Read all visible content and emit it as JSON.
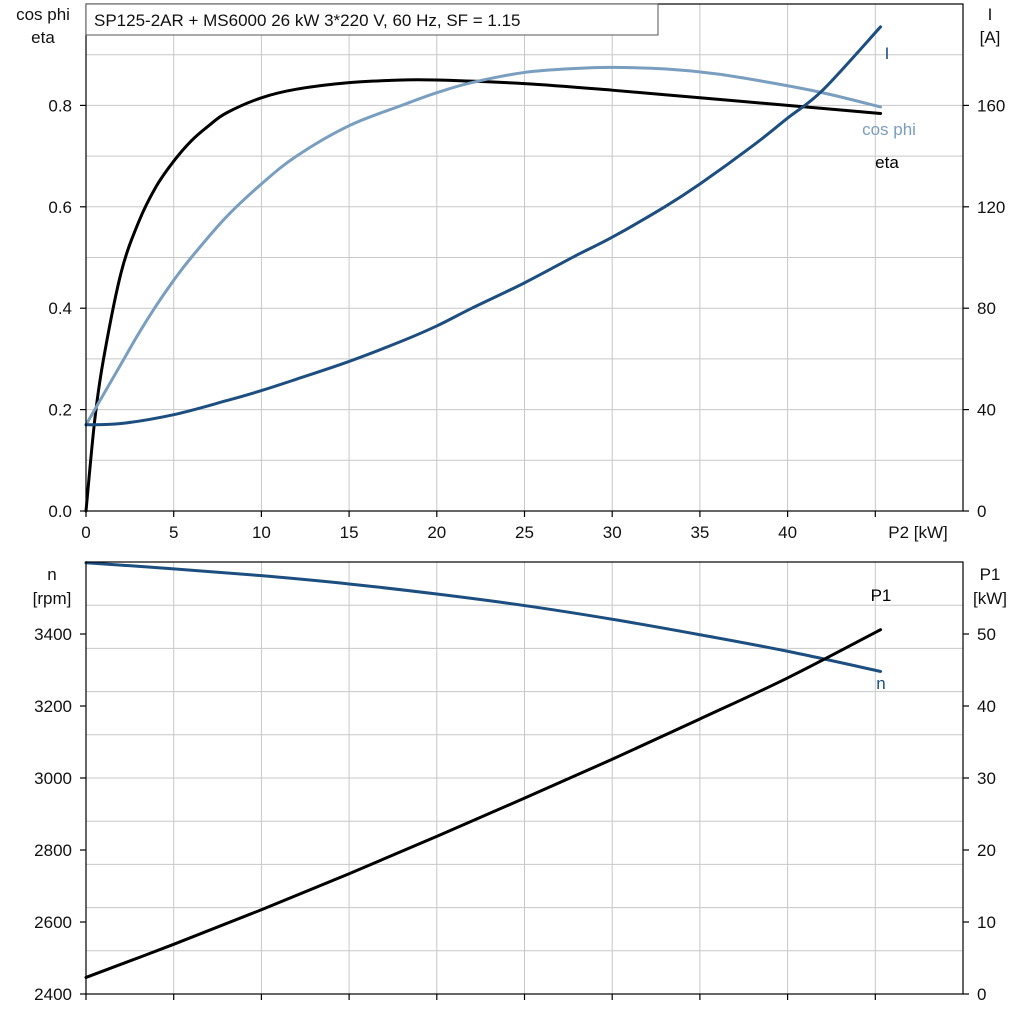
{
  "chart_data": [
    {
      "type": "line",
      "title": "SP125-2AR + MS6000   26 kW   3*220 V, 60 Hz, SF = 1.15",
      "xlabel": "P2 [kW]",
      "ylabel_left_line1": "cos phi",
      "ylabel_left_line2": "eta",
      "ylabel_right_line1": "I",
      "ylabel_right_line2": "[A]",
      "xlim": [
        0,
        50
      ],
      "ylim_left": [
        0,
        1.0
      ],
      "ylim_right": [
        0,
        200
      ],
      "x_ticks": [
        "0",
        "5",
        "10",
        "15",
        "20",
        "25",
        "30",
        "35",
        "40"
      ],
      "y_ticks_left": [
        "0.0",
        "0.2",
        "0.4",
        "0.6",
        "0.8"
      ],
      "y_ticks_right": [
        "0",
        "40",
        "80",
        "120",
        "160"
      ],
      "grid": true,
      "series": [
        {
          "name": "eta",
          "axis": "left",
          "color": "#000000",
          "x": [
            0,
            0.5,
            1,
            2,
            3,
            4,
            5,
            6,
            7,
            8,
            10,
            12,
            15,
            18,
            20,
            25,
            30,
            35,
            40,
            45.3
          ],
          "y": [
            0.0,
            0.18,
            0.3,
            0.47,
            0.57,
            0.64,
            0.69,
            0.73,
            0.76,
            0.785,
            0.815,
            0.832,
            0.845,
            0.85,
            0.85,
            0.843,
            0.83,
            0.815,
            0.8,
            0.784
          ]
        },
        {
          "name": "cos phi",
          "axis": "left",
          "color": "#7A9EBF",
          "x": [
            0,
            1,
            2,
            3,
            4,
            5,
            6,
            8,
            10,
            12,
            15,
            18,
            20,
            22,
            25,
            28,
            30,
            33,
            36,
            39,
            42,
            45.3
          ],
          "y": [
            0.17,
            0.23,
            0.29,
            0.35,
            0.405,
            0.455,
            0.5,
            0.58,
            0.645,
            0.7,
            0.76,
            0.8,
            0.825,
            0.845,
            0.865,
            0.873,
            0.875,
            0.872,
            0.862,
            0.845,
            0.825,
            0.797
          ]
        },
        {
          "name": "I",
          "axis": "right",
          "color": "#1C4E80",
          "x": [
            0,
            2,
            5,
            8,
            10,
            12,
            15,
            18,
            20,
            22,
            25,
            28,
            30,
            33,
            35,
            38,
            40,
            42,
            45.3
          ],
          "y": [
            34,
            34.5,
            38,
            43.5,
            47.5,
            52,
            59,
            67,
            73,
            80,
            90,
            101,
            108,
            120,
            129,
            144,
            155,
            166,
            191
          ]
        }
      ],
      "labels": {
        "eta": "eta",
        "cos_phi": "cos phi",
        "I": "I"
      }
    },
    {
      "type": "line",
      "xlabel": "",
      "ylabel_left_line1": "n",
      "ylabel_left_line2": "[rpm]",
      "ylabel_right_line1": "P1",
      "ylabel_right_line2": "[kW]",
      "xlim": [
        0,
        50
      ],
      "ylim_left": [
        2400,
        3600
      ],
      "ylim_right": [
        0,
        60
      ],
      "y_ticks_left": [
        "2400",
        "2600",
        "2800",
        "3000",
        "3200",
        "3400"
      ],
      "y_ticks_right": [
        "0",
        "10",
        "20",
        "30",
        "40",
        "50"
      ],
      "grid": true,
      "series": [
        {
          "name": "n",
          "axis": "left",
          "color": "#1C4E80",
          "x": [
            0,
            5,
            10,
            15,
            20,
            25,
            30,
            35,
            40,
            45.3
          ],
          "y": [
            3598,
            3581,
            3562,
            3539,
            3511,
            3479,
            3441,
            3398,
            3352,
            3296
          ]
        },
        {
          "name": "P1",
          "axis": "right",
          "color": "#000000",
          "x": [
            0,
            5,
            10,
            15,
            20,
            25,
            30,
            35,
            40,
            45.3
          ],
          "y": [
            2.3,
            6.9,
            11.7,
            16.7,
            21.9,
            27.2,
            32.6,
            38.2,
            43.9,
            50.6
          ]
        }
      ],
      "labels": {
        "n": "n",
        "P1": "P1"
      }
    }
  ]
}
